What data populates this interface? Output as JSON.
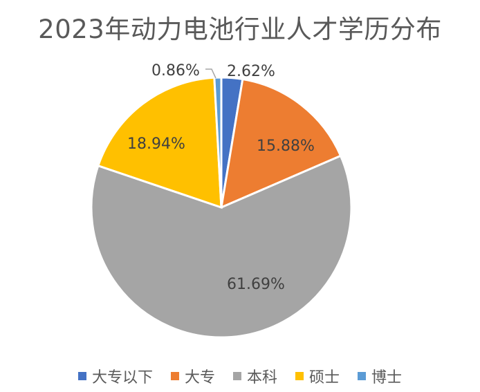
{
  "chart_data": {
    "type": "pie",
    "title": "2023年动力电池行业人才学历分布",
    "categories": [
      "大专以下",
      "大专",
      "本科",
      "硕士",
      "博士"
    ],
    "values": [
      2.62,
      15.88,
      61.69,
      18.94,
      0.86
    ],
    "labels": [
      "2.62%",
      "15.88%",
      "61.69%",
      "18.94%",
      "0.86%"
    ],
    "colors": [
      "#4472C4",
      "#ED7D31",
      "#A5A5A5",
      "#FFC000",
      "#5B9BD5"
    ],
    "legend_position": "bottom",
    "start_angle": "12 o'clock, clockwise"
  }
}
